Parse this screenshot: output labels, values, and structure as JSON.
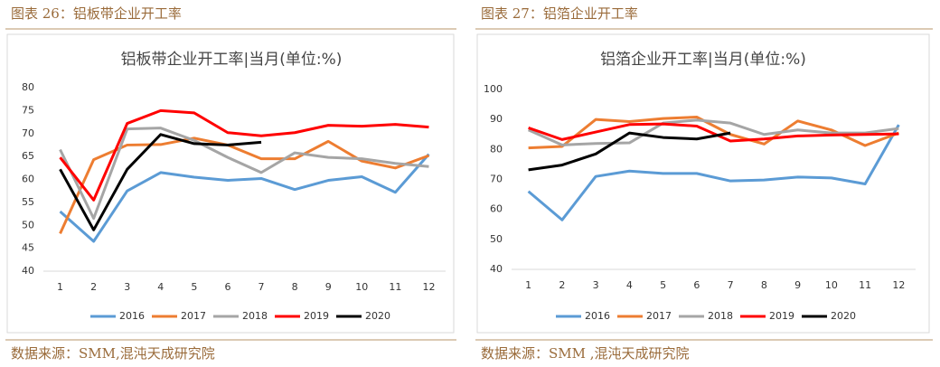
{
  "chart_data": [
    {
      "type": "line",
      "figure_label": "图表 26：铝板带企业开工率",
      "title": "铝板带企业开工率|当月(单位:%)",
      "source": "数据来源：SMM,混沌天成研究院",
      "categories": [
        1,
        2,
        3,
        4,
        5,
        6,
        7,
        8,
        9,
        10,
        11,
        12
      ],
      "ylim": [
        40,
        80
      ],
      "yticks": [
        40,
        45,
        50,
        55,
        60,
        65,
        70,
        75,
        80
      ],
      "grid": false,
      "legend": "bottom",
      "series": [
        {
          "name": "2016",
          "color": "#5b9bd5",
          "values": [
            53,
            46.5,
            57.5,
            61.5,
            60.5,
            59.8,
            60.2,
            57.8,
            59.8,
            60.6,
            57.2,
            65.5
          ]
        },
        {
          "name": "2017",
          "color": "#ed7d31",
          "values": [
            48.2,
            64.3,
            67.5,
            67.6,
            69,
            67.5,
            64.5,
            64.5,
            68.3,
            64,
            62.5,
            65.2
          ]
        },
        {
          "name": "2018",
          "color": "#a5a5a5",
          "values": [
            66.5,
            51.5,
            71,
            71.2,
            68.5,
            64.8,
            61.5,
            65.8,
            64.8,
            64.5,
            63.5,
            62.8
          ]
        },
        {
          "name": "2019",
          "color": "#ff0000",
          "values": [
            64.8,
            55.5,
            72.2,
            75,
            74.5,
            70.2,
            69.5,
            70.2,
            71.8,
            71.6,
            72,
            71.4
          ]
        },
        {
          "name": "2020",
          "color": "#000000",
          "values": [
            62.2,
            49,
            62.2,
            69.8,
            67.8,
            67.5,
            68.1,
            null,
            null,
            null,
            null,
            null
          ]
        }
      ]
    },
    {
      "type": "line",
      "figure_label": "图表 27：铝箔企业开工率",
      "title": "铝箔企业开工率|当月(单位:%)",
      "source": "数据来源：SMM ,混沌天成研究院",
      "categories": [
        1,
        2,
        3,
        4,
        5,
        6,
        7,
        8,
        9,
        10,
        11,
        12
      ],
      "ylim": [
        40,
        100
      ],
      "yticks": [
        40,
        50,
        60,
        70,
        80,
        90,
        100
      ],
      "grid": false,
      "legend": "bottom",
      "series": [
        {
          "name": "2016",
          "color": "#5b9bd5",
          "values": [
            66,
            56.5,
            71,
            72.8,
            72,
            72,
            69.5,
            69.8,
            70.8,
            70.5,
            68.5,
            88.2
          ]
        },
        {
          "name": "2017",
          "color": "#ed7d31",
          "values": [
            80.5,
            81,
            90,
            89.3,
            90.3,
            90.8,
            85,
            81.8,
            89.5,
            86.5,
            81.3,
            85.5
          ]
        },
        {
          "name": "2018",
          "color": "#a5a5a5",
          "values": [
            86.5,
            81.5,
            82,
            82.2,
            88.8,
            89.8,
            88.8,
            85,
            86.5,
            85.5,
            85.5,
            87
          ]
        },
        {
          "name": "2019",
          "color": "#ff0000",
          "values": [
            87.2,
            83.3,
            85.8,
            88.3,
            88.5,
            87.8,
            82.8,
            83.5,
            84.5,
            84.8,
            85,
            85.2
          ]
        },
        {
          "name": "2020",
          "color": "#000000",
          "values": [
            73.2,
            74.8,
            78.5,
            85.5,
            84,
            83.5,
            85.5,
            null,
            null,
            null,
            null,
            null
          ]
        }
      ]
    }
  ]
}
